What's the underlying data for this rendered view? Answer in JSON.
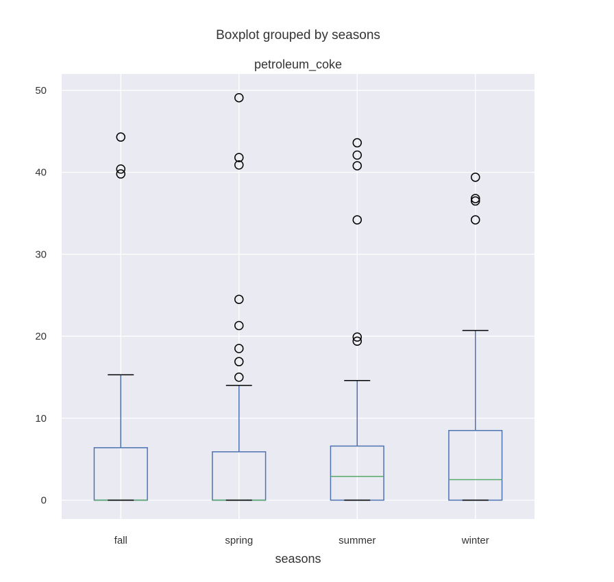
{
  "chart_data": {
    "type": "boxplot",
    "suptitle": "Boxplot grouped by seasons",
    "title": "petroleum_coke",
    "xlabel": "seasons",
    "ylabel": "",
    "ylim": [
      -2.3,
      52
    ],
    "yticks": [
      "0",
      "10",
      "20",
      "30",
      "40",
      "50"
    ],
    "grid": true,
    "colors": {
      "background": "#eaeaf2",
      "grid": "#ffffff",
      "box": "#4c72b0",
      "median": "#55a868",
      "cap": "#000000",
      "flier": "#000000"
    },
    "groups": [
      {
        "label": "fall",
        "whislo": 0,
        "q1": 0,
        "med": 0,
        "q3": 6.4,
        "whishi": 15.3,
        "fliers": [
          39.8,
          40.4,
          44.3
        ]
      },
      {
        "label": "spring",
        "whislo": 0,
        "q1": 0,
        "med": 0,
        "q3": 5.9,
        "whishi": 14.0,
        "fliers": [
          15.0,
          16.9,
          18.5,
          21.3,
          24.5,
          40.9,
          41.8,
          49.1
        ]
      },
      {
        "label": "summer",
        "whislo": 0,
        "q1": 0,
        "med": 2.9,
        "q3": 6.6,
        "whishi": 14.6,
        "fliers": [
          19.4,
          19.9,
          34.2,
          40.8,
          42.1,
          43.6
        ]
      },
      {
        "label": "winter",
        "whislo": 0,
        "q1": 0,
        "med": 2.5,
        "q3": 8.5,
        "whishi": 20.7,
        "fliers": [
          34.2,
          36.5,
          36.8,
          39.4
        ]
      }
    ]
  }
}
